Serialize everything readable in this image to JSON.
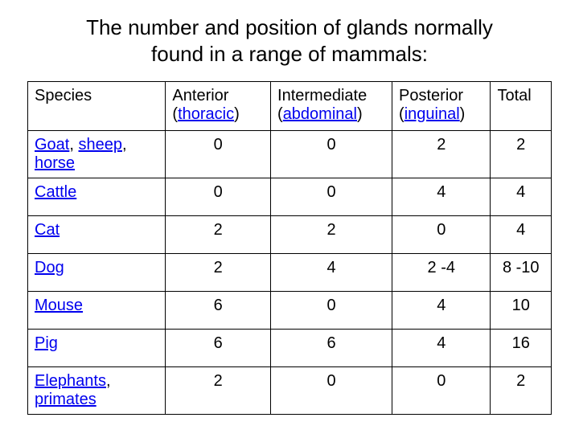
{
  "title_line1": "The number and position of glands normally",
  "title_line2": "found in a range of mammals:",
  "header": {
    "species": "Species",
    "anterior_plain": "Anterior (",
    "anterior_link": "thoracic",
    "anterior_close": ")",
    "intermediate_plain": "Intermediate (",
    "intermediate_link": "abdominal",
    "intermediate_close": ")",
    "posterior_plain": "Posterior (",
    "posterior_link": "inguinal",
    "posterior_close": ")",
    "total": "Total"
  },
  "rows": [
    {
      "species_links": [
        "Goat",
        "sheep",
        "horse"
      ],
      "sep1": ", ",
      "sep2": ", ",
      "anterior": "0",
      "intermediate": "0",
      "posterior": "2",
      "total": "2"
    },
    {
      "species_links": [
        "Cattle"
      ],
      "anterior": "0",
      "intermediate": "0",
      "posterior": "4",
      "total": "4"
    },
    {
      "species_links": [
        "Cat"
      ],
      "anterior": "2",
      "intermediate": "2",
      "posterior": "0",
      "total": "4"
    },
    {
      "species_links": [
        "Dog"
      ],
      "anterior": "2",
      "intermediate": "4",
      "posterior": "2 -4",
      "total": "8 -10"
    },
    {
      "species_links": [
        "Mouse"
      ],
      "anterior": "6",
      "intermediate": "0",
      "posterior": "4",
      "total": "10"
    },
    {
      "species_links": [
        "Pig"
      ],
      "anterior": "6",
      "intermediate": "6",
      "posterior": "4",
      "total": "16"
    },
    {
      "species_links": [
        "Elephants",
        "primates"
      ],
      "sep1": ", ",
      "anterior": "2",
      "intermediate": "0",
      "posterior": "0",
      "total": "2"
    }
  ]
}
